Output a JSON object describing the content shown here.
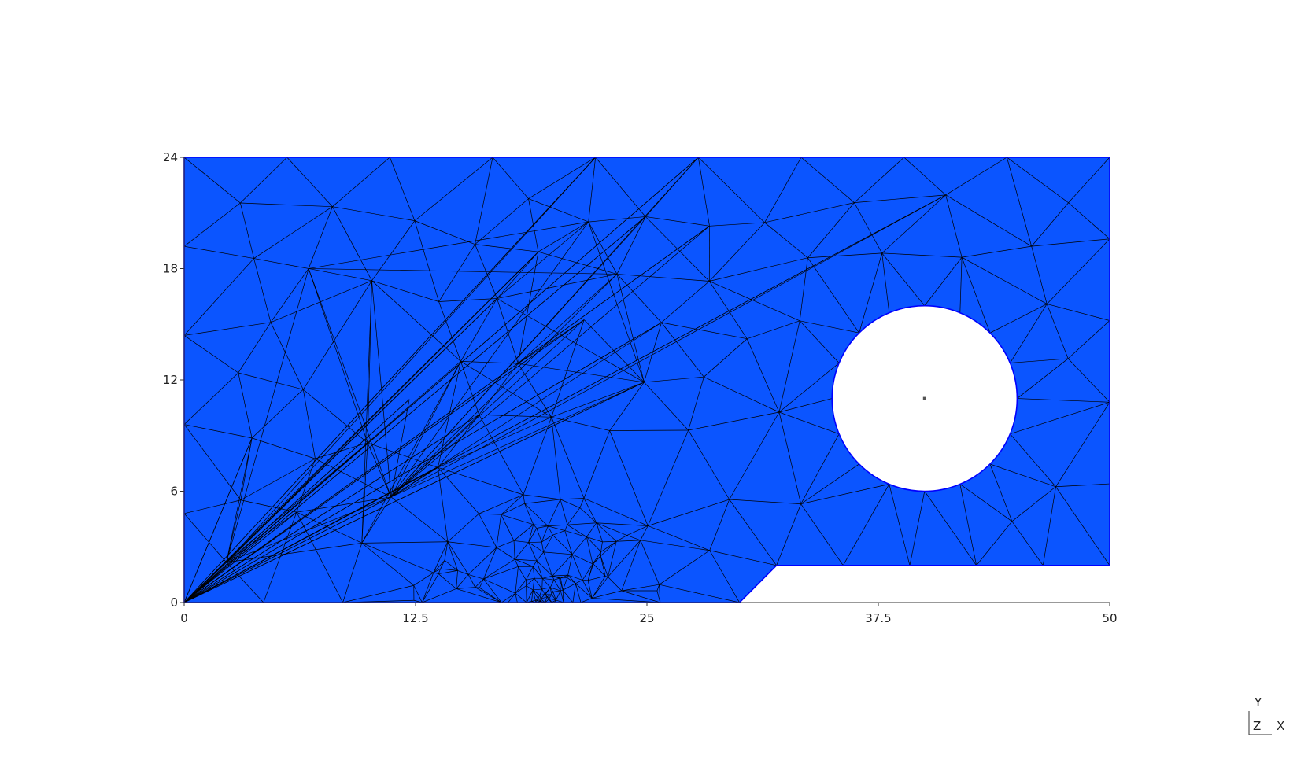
{
  "colors": {
    "mesh_fill": "#0b55ff",
    "mesh_edge": "#000000",
    "boundary": "#0000ff",
    "background": "#ffffff",
    "axis": "#333333"
  },
  "axes": {
    "x_ticks": [
      "0",
      "12.5",
      "25",
      "37.5",
      "50"
    ],
    "y_ticks": [
      "0",
      "6",
      "12",
      "18",
      "24"
    ],
    "x_range": [
      0,
      50
    ],
    "y_range": [
      0,
      24
    ]
  },
  "geometry": {
    "outline": [
      [
        0,
        0
      ],
      [
        30,
        0
      ],
      [
        32,
        2
      ],
      [
        50,
        2
      ],
      [
        50,
        24
      ],
      [
        0,
        24
      ]
    ],
    "hole": {
      "cx": 40,
      "cy": 11,
      "r": 5
    }
  },
  "triad": {
    "y_label": "Y",
    "z_label": "Z",
    "x_label": "X"
  }
}
